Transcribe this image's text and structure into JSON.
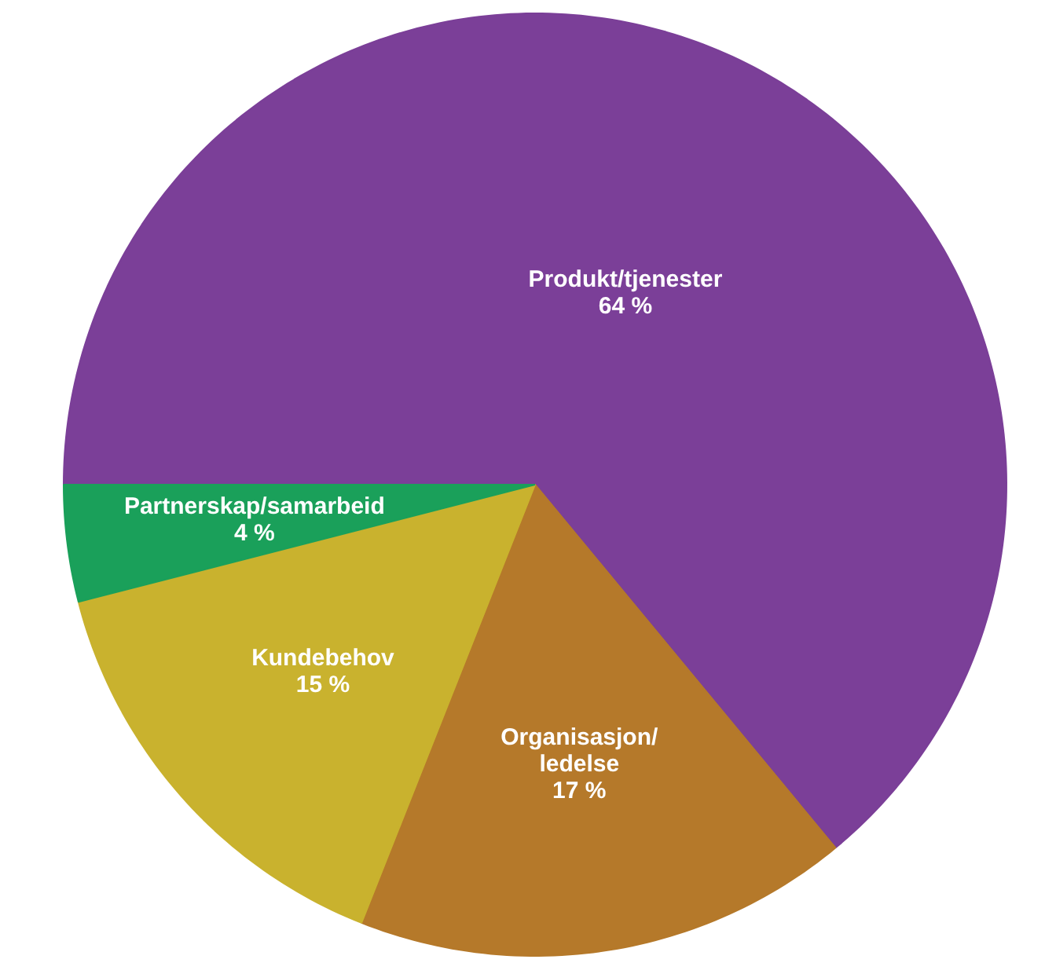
{
  "chart_data": {
    "type": "pie",
    "categories": [
      "Produkt/tjenester",
      "Organisasjon/\nledelse",
      "Kundebehov",
      "Partnerskap/samarbeid"
    ],
    "values": [
      64,
      17,
      15,
      4
    ],
    "colors": [
      "#7b3f98",
      "#b5792a",
      "#c9b22e",
      "#1aa05a"
    ],
    "value_labels": [
      "64 %",
      "17 %",
      "15 %",
      "4 %"
    ],
    "legend": false
  }
}
